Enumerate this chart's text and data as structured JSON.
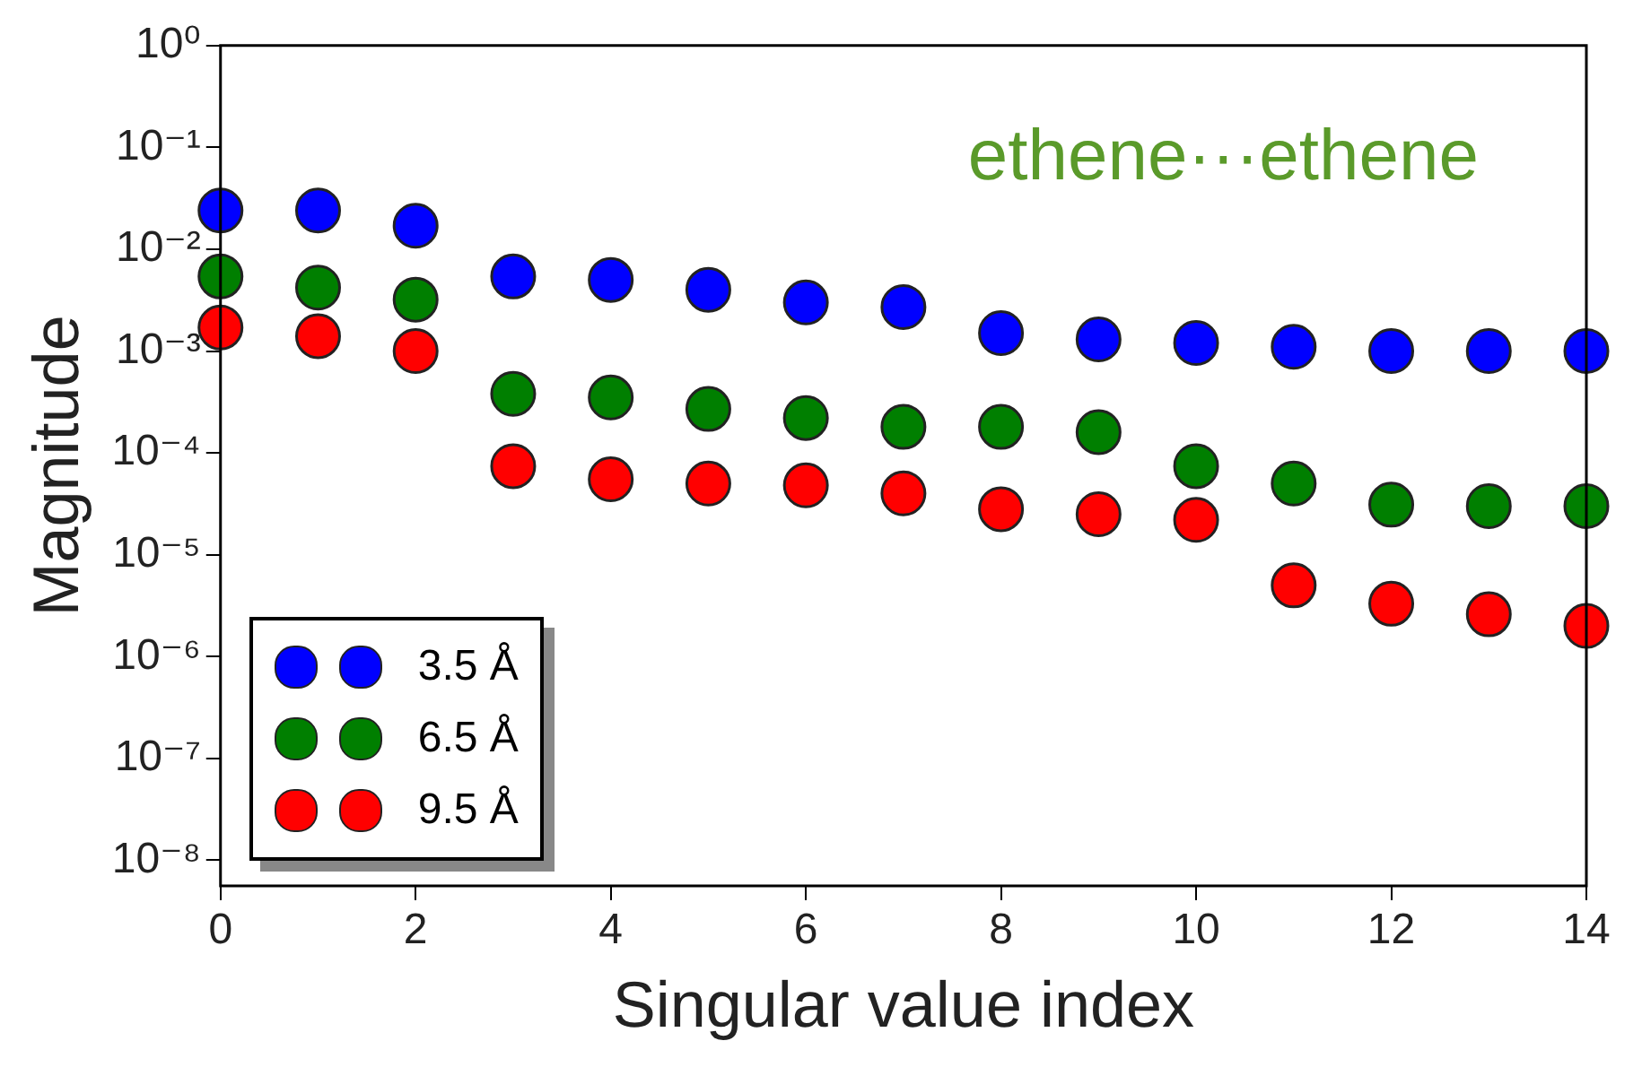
{
  "chart_data": {
    "type": "scatter",
    "xlabel": "Singular value index",
    "ylabel": "Magnitude",
    "annotations": [
      "ethene···ethene"
    ],
    "x": [
      0,
      1,
      2,
      3,
      4,
      5,
      6,
      7,
      8,
      9,
      10,
      11,
      12,
      13,
      14
    ],
    "series": [
      {
        "name": "3.5 Å",
        "color": "#0000ff",
        "values": [
          0.024,
          0.024,
          0.017,
          0.0054,
          0.005,
          0.004,
          0.003,
          0.0027,
          0.0015,
          0.0013,
          0.0012,
          0.0011,
          0.001,
          0.001,
          0.001
        ]
      },
      {
        "name": "6.5 Å",
        "color": "#007f00",
        "values": [
          0.0054,
          0.0042,
          0.0032,
          0.00038,
          0.00035,
          0.00027,
          0.00022,
          0.00018,
          0.00018,
          0.00016,
          7.4e-05,
          5e-05,
          3.1e-05,
          3e-05,
          3e-05
        ]
      },
      {
        "name": "9.5 Å",
        "color": "#ff0000",
        "values": [
          0.0017,
          0.0014,
          0.001,
          7.4e-05,
          5.5e-05,
          5e-05,
          4.8e-05,
          4e-05,
          2.8e-05,
          2.5e-05,
          2.2e-05,
          5e-06,
          3.3e-06,
          2.6e-06,
          2e-06
        ]
      }
    ],
    "xlim": [
      0,
      14
    ],
    "xticks": [
      0,
      2,
      4,
      6,
      8,
      10,
      12,
      14
    ],
    "ylim": [
      5.6e-09,
      1
    ],
    "yticks": [
      {
        "value": 1,
        "label": "10⁰"
      },
      {
        "value": 0.1,
        "label": "10⁻¹"
      },
      {
        "value": 0.01,
        "label": "10⁻²"
      },
      {
        "value": 0.001,
        "label": "10⁻³"
      },
      {
        "value": 0.0001,
        "label": "10⁻⁴"
      },
      {
        "value": 1e-05,
        "label": "10⁻⁵"
      },
      {
        "value": 1e-06,
        "label": "10⁻⁶"
      },
      {
        "value": 1e-07,
        "label": "10⁻⁷"
      },
      {
        "value": 1e-08,
        "label": "10⁻⁸"
      }
    ],
    "log": "y",
    "grid": false,
    "legend": "bottom left",
    "marker": "circle"
  }
}
